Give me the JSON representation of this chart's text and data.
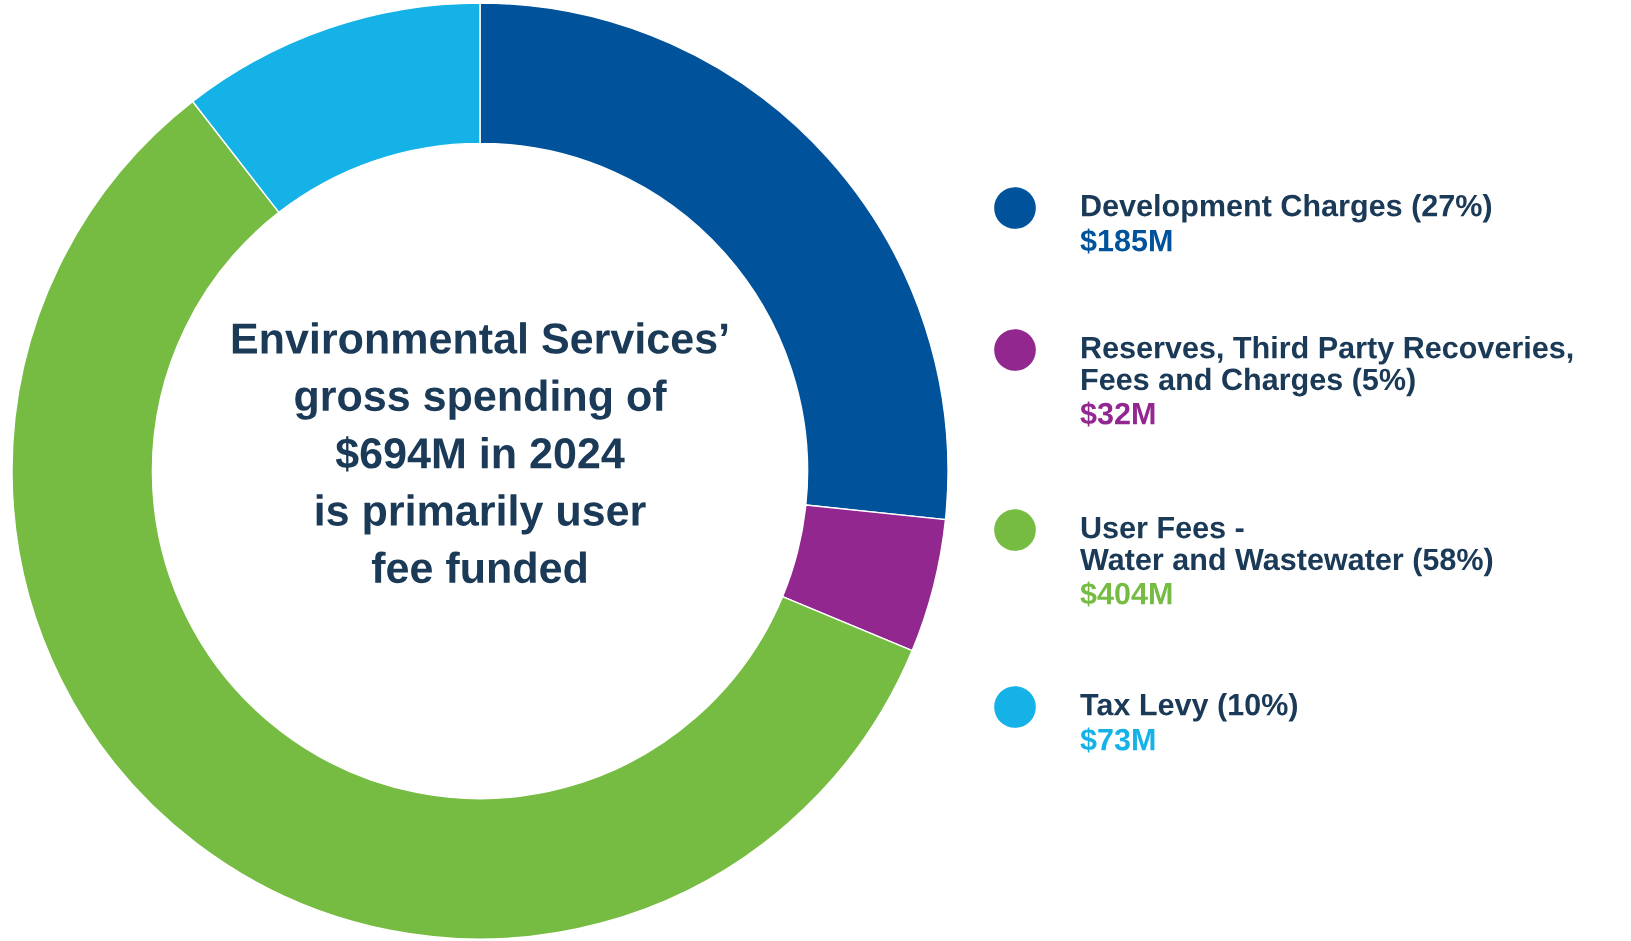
{
  "chart_data": {
    "type": "donut",
    "title": "Environmental Services’\ngross spending of\n$694M in 2024\nis primarily user\nfee funded",
    "categories": [
      "Development Charges (27%)",
      "Reserves, Third Party Recoveries,\nFees and Charges (5%)",
      "User Fees -\nWater and Wastewater (58%)",
      "Tax Levy (10%)"
    ],
    "values": [
      185,
      32,
      404,
      73
    ],
    "value_labels": [
      "$185M",
      "$32M",
      "$404M",
      "$73M"
    ],
    "colors": [
      "#00539b",
      "#92278f",
      "#76bc43",
      "#15b2e8"
    ],
    "legend": "right"
  }
}
